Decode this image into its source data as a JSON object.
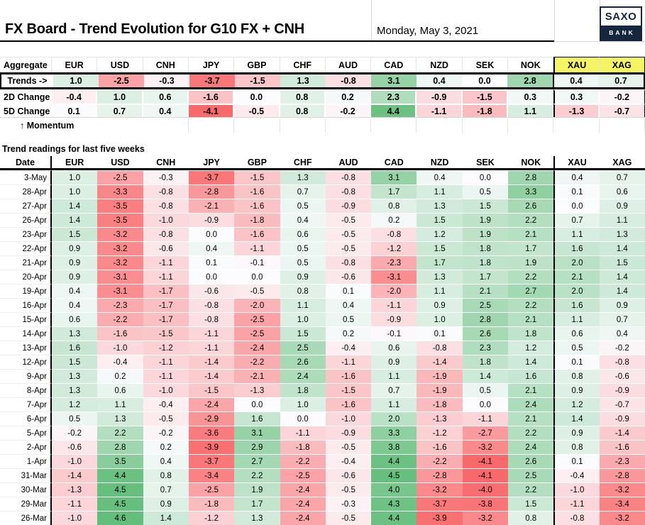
{
  "header": {
    "title": "FX Board - Trend Evolution for G10 FX + CNH",
    "date": "Monday, May 3, 2021",
    "logo": {
      "top": "SAXO",
      "bottom": "BANK"
    }
  },
  "currencies": [
    "EUR",
    "USD",
    "CNH",
    "JPY",
    "GBP",
    "CHF",
    "AUD",
    "CAD",
    "NZD",
    "SEK",
    "NOK",
    "XAU",
    "XAG"
  ],
  "aggregate": {
    "corner_label": "Aggregate",
    "momentum_label": "↑ Momentum",
    "rows": [
      {
        "label": "Trends ->",
        "values": [
          1.0,
          -2.5,
          -0.3,
          -3.7,
          -1.5,
          1.3,
          -0.8,
          3.1,
          0.4,
          0.0,
          2.8,
          0.4,
          0.7
        ]
      },
      {
        "label": "2D Change",
        "values": [
          -0.4,
          1.0,
          0.6,
          -1.6,
          0.0,
          0.8,
          0.2,
          2.3,
          -0.9,
          -1.5,
          0.3,
          0.3,
          -0.2
        ]
      },
      {
        "label": "5D Change",
        "values": [
          0.1,
          0.7,
          0.4,
          -4.1,
          -0.5,
          0.8,
          -0.2,
          4.4,
          -1.1,
          -1.8,
          1.1,
          -1.3,
          -0.7
        ]
      }
    ]
  },
  "history": {
    "section_title": "Trend readings for last five weeks",
    "date_header": "Date",
    "rows": [
      {
        "date": "3-May",
        "values": [
          1.0,
          -2.5,
          -0.3,
          -3.7,
          -1.5,
          1.3,
          -0.8,
          3.1,
          0.4,
          0.0,
          2.8,
          0.4,
          0.7
        ]
      },
      {
        "date": "28-Apr",
        "values": [
          1.0,
          -3.3,
          -0.8,
          -2.8,
          -1.6,
          0.7,
          -0.8,
          1.7,
          1.1,
          0.5,
          3.3,
          0.1,
          0.6
        ]
      },
      {
        "date": "27-Apr",
        "values": [
          1.4,
          -3.5,
          -0.8,
          -2.1,
          -1.6,
          0.5,
          -0.9,
          0.8,
          1.3,
          1.5,
          2.6,
          0.0,
          0.9
        ]
      },
      {
        "date": "26-Apr",
        "values": [
          1.4,
          -3.5,
          -1.0,
          -0.9,
          -1.8,
          0.4,
          -0.5,
          0.2,
          1.5,
          1.9,
          2.2,
          0.7,
          1.1
        ]
      },
      {
        "date": "23-Apr",
        "values": [
          1.5,
          -3.2,
          -0.8,
          0.0,
          -1.6,
          0.6,
          -0.5,
          -0.8,
          1.2,
          1.9,
          2.1,
          1.1,
          1.3
        ]
      },
      {
        "date": "22-Apr",
        "values": [
          0.9,
          -3.2,
          -0.6,
          0.4,
          -1.1,
          0.5,
          -0.5,
          -1.2,
          1.5,
          1.8,
          1.7,
          1.6,
          1.4
        ]
      },
      {
        "date": "21-Apr",
        "values": [
          0.9,
          -3.2,
          -1.1,
          0.1,
          -0.1,
          0.5,
          -0.8,
          -2.3,
          1.7,
          1.8,
          1.9,
          2.0,
          1.5
        ]
      },
      {
        "date": "20-Apr",
        "values": [
          0.9,
          -3.1,
          -1.1,
          0.0,
          0.0,
          0.9,
          -0.6,
          -3.1,
          1.3,
          1.7,
          2.2,
          2.1,
          1.4
        ]
      },
      {
        "date": "19-Apr",
        "values": [
          0.4,
          -3.1,
          -1.7,
          -0.6,
          -0.5,
          0.8,
          0.1,
          -2.0,
          1.1,
          2.1,
          2.7,
          2.0,
          1.4
        ]
      },
      {
        "date": "16-Apr",
        "values": [
          0.4,
          -2.3,
          -1.7,
          -0.8,
          -2.0,
          1.1,
          0.4,
          -1.1,
          0.9,
          2.5,
          2.2,
          1.6,
          0.9
        ]
      },
      {
        "date": "15-Apr",
        "values": [
          0.6,
          -2.2,
          -1.7,
          -0.8,
          -2.5,
          1.0,
          0.5,
          -0.9,
          1.0,
          2.8,
          2.1,
          1.1,
          0.7
        ]
      },
      {
        "date": "14-Apr",
        "values": [
          1.3,
          -1.6,
          -1.5,
          -1.1,
          -2.5,
          1.5,
          0.2,
          -0.1,
          0.1,
          2.6,
          1.8,
          0.6,
          0.4
        ]
      },
      {
        "date": "13-Apr",
        "values": [
          1.6,
          -1.0,
          -1.2,
          -1.1,
          -2.4,
          2.5,
          -0.4,
          0.6,
          -0.8,
          2.3,
          1.2,
          0.5,
          -0.2
        ]
      },
      {
        "date": "12-Apr",
        "values": [
          1.5,
          -0.4,
          -1.1,
          -1.4,
          -2.2,
          2.6,
          -1.1,
          0.9,
          -1.4,
          1.8,
          1.4,
          0.1,
          -0.8
        ]
      },
      {
        "date": "9-Apr",
        "values": [
          1.3,
          0.2,
          -1.1,
          -1.4,
          -2.1,
          2.4,
          -1.6,
          1.1,
          -1.9,
          1.4,
          1.6,
          0.8,
          -0.6
        ]
      },
      {
        "date": "8-Apr",
        "values": [
          1.3,
          0.6,
          -1.0,
          -1.5,
          -1.3,
          1.8,
          -1.5,
          0.7,
          -1.9,
          0.5,
          2.1,
          0.9,
          -0.9
        ]
      },
      {
        "date": "7-Apr",
        "values": [
          1.2,
          1.1,
          -0.4,
          -2.4,
          0.0,
          1.0,
          -1.6,
          1.1,
          -1.8,
          0.0,
          2.4,
          1.2,
          -0.7
        ]
      },
      {
        "date": "6-Apr",
        "values": [
          0.5,
          1.3,
          -0.5,
          -2.9,
          1.6,
          0.0,
          -1.0,
          2.0,
          -1.3,
          -1.1,
          2.1,
          1.4,
          -0.9
        ]
      },
      {
        "date": "5-Apr",
        "values": [
          -0.2,
          2.2,
          -0.2,
          -3.6,
          3.1,
          -1.1,
          -0.9,
          3.3,
          -1.2,
          -2.7,
          2.2,
          0.9,
          -1.4
        ]
      },
      {
        "date": "2-Apr",
        "values": [
          -0.6,
          2.8,
          0.2,
          -3.9,
          2.9,
          -1.8,
          -0.5,
          3.8,
          -1.6,
          -3.2,
          2.4,
          0.8,
          -1.6
        ]
      },
      {
        "date": "1-Apr",
        "values": [
          -1.0,
          3.5,
          0.4,
          -3.7,
          2.7,
          -2.2,
          -0.4,
          4.4,
          -2.2,
          -4.1,
          2.6,
          0.1,
          -2.3
        ]
      },
      {
        "date": "31-Mar",
        "values": [
          -1.4,
          4.4,
          0.8,
          -3.4,
          2.2,
          -2.5,
          -0.6,
          4.5,
          -2.8,
          -4.1,
          2.5,
          -0.4,
          -2.8
        ]
      },
      {
        "date": "30-Mar",
        "values": [
          -1.3,
          4.5,
          0.7,
          -2.5,
          1.9,
          -2.4,
          -0.5,
          4.0,
          -3.2,
          -4.0,
          2.2,
          -1.0,
          -3.2
        ]
      },
      {
        "date": "29-Mar",
        "values": [
          -1.1,
          4.5,
          0.9,
          -1.8,
          1.7,
          -2.4,
          -0.3,
          4.3,
          -3.7,
          -3.8,
          1.5,
          -1.1,
          -3.4
        ]
      },
      {
        "date": "26-Mar",
        "values": [
          -1.0,
          4.6,
          1.4,
          -1.2,
          1.3,
          -2.4,
          -0.5,
          4.4,
          -3.9,
          -3.2,
          0.8,
          -0.8,
          -3.2
        ]
      }
    ]
  },
  "colors": {
    "negative_max": "#F8696B",
    "neutral": "#FCFCFF",
    "positive_max": "#63BE7B",
    "neg_range": 4.1,
    "pos_range": 4.6,
    "xau_header_bg": "#F4F464",
    "logo_navy": "#16263F"
  }
}
